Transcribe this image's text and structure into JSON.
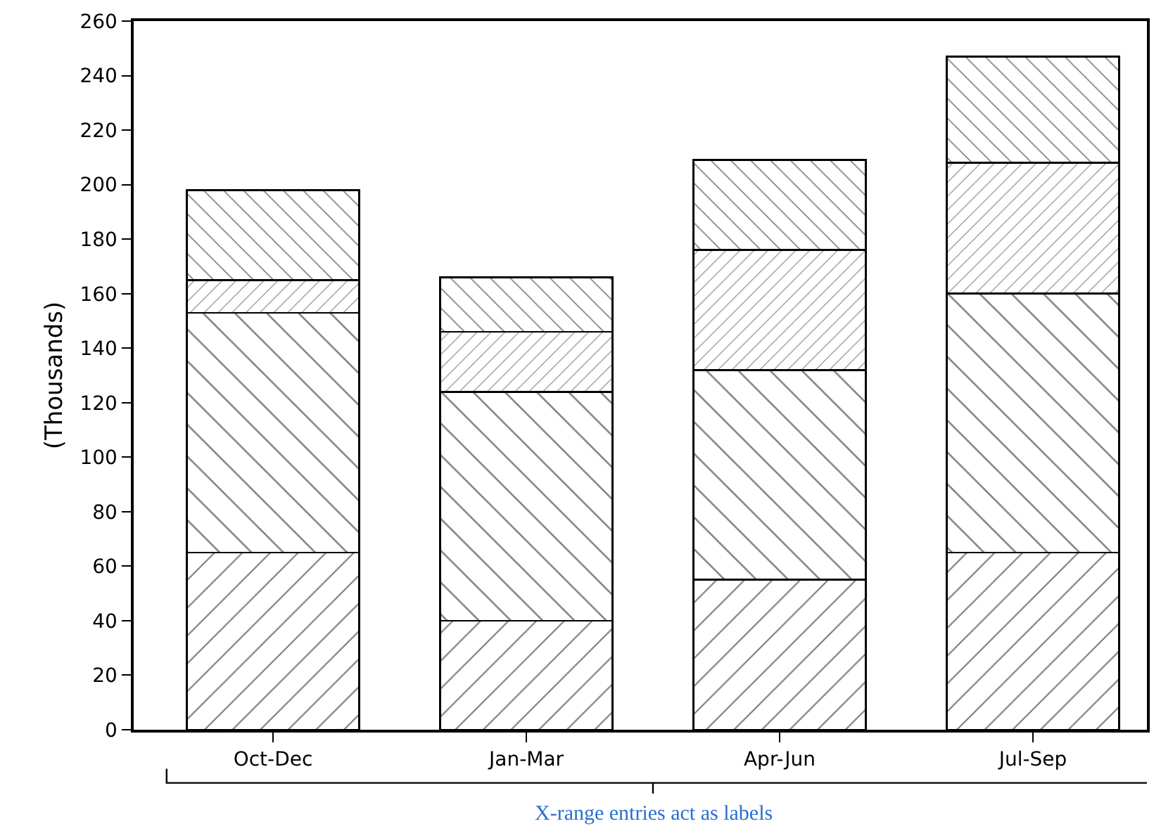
{
  "chart_data": {
    "type": "bar",
    "stacked": true,
    "ylabel": "(Thousands)",
    "categories": [
      "Oct-Dec",
      "Jan-Mar",
      "Apr-Jun",
      "Jul-Sep"
    ],
    "series": [
      {
        "color": "#000000",
        "values": [
          65,
          40,
          55,
          65
        ]
      },
      {
        "color": "#000000",
        "values": [
          88,
          84,
          77,
          95
        ]
      },
      {
        "color": "#000000",
        "values": [
          12,
          22,
          44,
          48
        ]
      },
      {
        "color": "#000000",
        "values": [
          33,
          20,
          33,
          39
        ]
      }
    ],
    "ylim": [
      0,
      260
    ],
    "yticks": [
      0,
      20,
      40,
      60,
      80,
      100,
      120,
      140,
      160,
      180,
      200,
      220,
      240,
      260
    ],
    "annotations": [
      "X-range entries act as labels"
    ]
  }
}
